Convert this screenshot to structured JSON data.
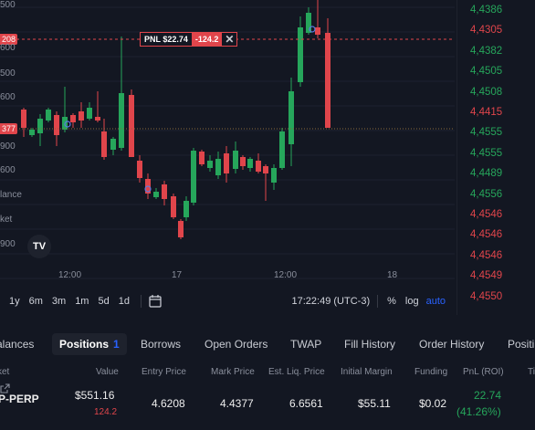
{
  "chart": {
    "y_axis_left_ticks": [
      "500",
      "600",
      "500",
      "600",
      "500",
      "900",
      "600",
      "lance",
      "ket",
      "900"
    ],
    "price_tag_top": "208",
    "price_tag_mid": "377",
    "pnl_label": "PNL $22.74",
    "pnl_value": "-124.2",
    "time_labels": [
      "12:00",
      "17",
      "12:00",
      "18"
    ],
    "tv_logo": "TV",
    "colors": {
      "up": "#26a65b",
      "down": "#e0454b",
      "bg": "#131722",
      "accent": "#2962ff"
    }
  },
  "toolbar": {
    "ranges": [
      "1y",
      "6m",
      "3m",
      "1m",
      "5d",
      "1d"
    ],
    "calendar_icon": "calendar-range-icon",
    "clock": "17:22:49 (UTC-3)",
    "percent": "%",
    "log": "log",
    "auto": "auto"
  },
  "ladder": [
    {
      "price": "4,4386",
      "dir": "up"
    },
    {
      "price": "4,4305",
      "dir": "down"
    },
    {
      "price": "4,4382",
      "dir": "up"
    },
    {
      "price": "4,4505",
      "dir": "up"
    },
    {
      "price": "4,4508",
      "dir": "up"
    },
    {
      "price": "4,4415",
      "dir": "down"
    },
    {
      "price": "4,4555",
      "dir": "up"
    },
    {
      "price": "4,4555",
      "dir": "up"
    },
    {
      "price": "4,4489",
      "dir": "up"
    },
    {
      "price": "4,4556",
      "dir": "up"
    },
    {
      "price": "4,4546",
      "dir": "down"
    },
    {
      "price": "4,4546",
      "dir": "down"
    },
    {
      "price": "4,4546",
      "dir": "down"
    },
    {
      "price": "4,4549",
      "dir": "down"
    },
    {
      "price": "4,4550",
      "dir": "down"
    }
  ],
  "tabs": {
    "balances": "alances",
    "positions": "Positions",
    "positions_count": "1",
    "borrows": "Borrows",
    "open_orders": "Open Orders",
    "twap": "TWAP",
    "fill_history": "Fill History",
    "order_history": "Order History",
    "cut_off": "Positi"
  },
  "table": {
    "headers": [
      "ket",
      "Value",
      "Entry Price",
      "Mark Price",
      "Est. Liq. Price",
      "Initial Margin",
      "Funding",
      "PnL (ROI)",
      "Ti"
    ],
    "row": {
      "market": "P-PERP",
      "value": "$551.16",
      "value_sub": "124.2",
      "entry_price": "4.6208",
      "mark_price": "4.4377",
      "liq_price": "6.6561",
      "initial_margin": "$55.11",
      "funding": "$0.02",
      "pnl": "22.74",
      "roi": "(41.26%)",
      "share_icon": "share-external-icon"
    }
  }
}
